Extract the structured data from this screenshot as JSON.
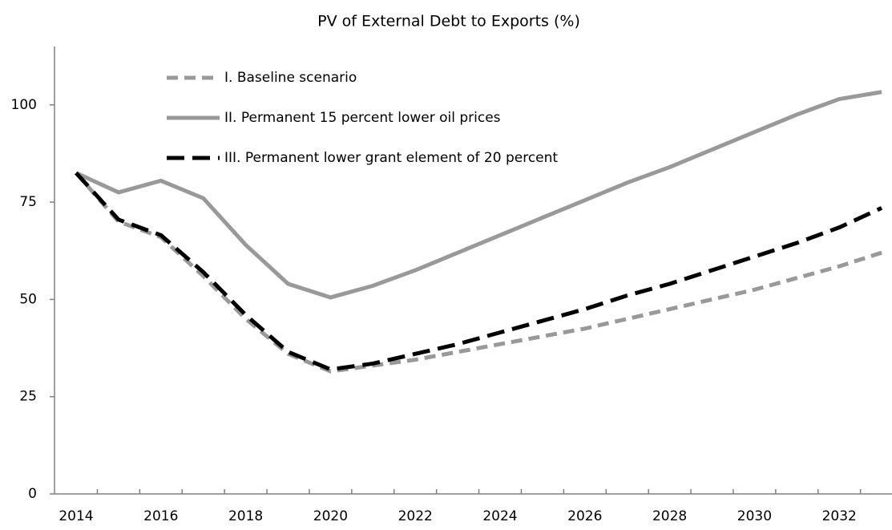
{
  "chart_data": {
    "type": "line",
    "title": "PV of External Debt to Exports (%)",
    "categories": [
      "2014",
      null,
      "2016",
      null,
      "2018",
      null,
      "2020",
      null,
      "2022",
      null,
      "2024",
      null,
      "2026",
      null,
      "2028",
      null,
      "2030",
      null,
      "2032",
      null
    ],
    "series": [
      {
        "name": "I. Baseline scenario",
        "color": "#999999",
        "dash": "dashed",
        "values": [
          82.5,
          70,
          66,
          56,
          45,
          36,
          31.5,
          33,
          34.5,
          36.5,
          38.5,
          40.5,
          42.5,
          45,
          47.5,
          50,
          52.5,
          55.5,
          58.5,
          62
        ]
      },
      {
        "name": "II. Permanent 15 percent lower oil prices",
        "color": "#999999",
        "dash": "solid",
        "values": [
          82.5,
          77.5,
          80.5,
          76,
          64,
          54,
          50.5,
          53.5,
          57.5,
          62,
          66.5,
          71,
          75.5,
          80,
          84,
          88.5,
          93,
          97.5,
          101.5,
          103.3
        ]
      },
      {
        "name": "III. Permanent lower grant element of 20 percent",
        "color": "#000000",
        "dash": "dashed",
        "values": [
          82.5,
          70.5,
          66.5,
          57,
          46,
          36.5,
          32,
          33.5,
          36,
          38.5,
          41.5,
          44.5,
          47.5,
          51,
          54,
          57.5,
          61,
          64.5,
          68.5,
          73.5
        ]
      }
    ],
    "ylim": [
      0,
      115
    ],
    "yticks": [
      0,
      25,
      50,
      75,
      100
    ],
    "legend": "upper-left"
  }
}
